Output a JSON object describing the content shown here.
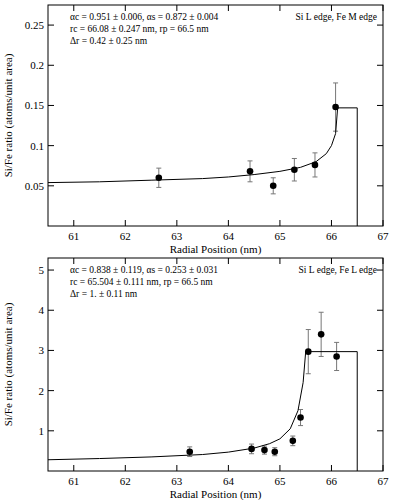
{
  "chart_data": [
    {
      "type": "scatter",
      "x_label": "Radial Position (nm)",
      "y_label": "Si/Fe ratio (atoms/unit area)",
      "annotations": [
        "αc = 0.951 ± 0.006, αs = 0.872 ± 0.004",
        "rc = 66.08 ± 0.247 nm, rp = 66.5 nm",
        "Δr = 0.42 ± 0.25 nm"
      ],
      "edge_label": "Si L edge, Fe M edge",
      "xlim": [
        60.5,
        67
      ],
      "xticks": [
        61,
        62,
        63,
        64,
        65,
        66,
        67
      ],
      "ylim": [
        0,
        0.275
      ],
      "yticks": [
        0.05,
        0.1,
        0.15,
        0.2,
        0.25
      ],
      "series": [
        {
          "type": "scatter",
          "marker": "circle",
          "color": "#000000",
          "x": [
            62.65,
            64.42,
            64.87,
            65.28,
            65.68,
            66.08
          ],
          "values": [
            0.06,
            0.068,
            0.05,
            0.07,
            0.076,
            0.148
          ],
          "errors": [
            0.012,
            0.013,
            0.01,
            0.014,
            0.015,
            0.03
          ]
        },
        {
          "type": "line",
          "line_style": "solid",
          "color": "#000000",
          "x": [
            60.5,
            61.5,
            62.5,
            63.5,
            64.0,
            64.5,
            65.0,
            65.4,
            65.7,
            65.9,
            66.0,
            66.08,
            66.12,
            66.5,
            66.5
          ],
          "values": [
            0.054,
            0.055,
            0.057,
            0.059,
            0.061,
            0.064,
            0.068,
            0.073,
            0.08,
            0.09,
            0.1,
            0.115,
            0.147,
            0.147,
            0
          ]
        }
      ]
    },
    {
      "type": "scatter",
      "x_label": "Radial Position (nm)",
      "y_label": "Si/Fe ratio (atoms/unit area)",
      "annotations": [
        "αc = 0.838 ± 0.119, αs = 0.253 ± 0.031",
        "rc = 65.504 ± 0.111 nm, rp = 66.5 nm",
        "Δr = 1. ± 0.11 nm"
      ],
      "edge_label": "Si L edge, Fe L edge",
      "xlim": [
        60.5,
        67
      ],
      "xticks": [
        61,
        62,
        63,
        64,
        65,
        66,
        67
      ],
      "ylim": [
        0,
        5.3
      ],
      "yticks": [
        1,
        2,
        3,
        4,
        5
      ],
      "series": [
        {
          "type": "scatter",
          "marker": "circle",
          "color": "#000000",
          "x": [
            63.25,
            64.45,
            64.7,
            64.9,
            65.25,
            65.4,
            65.55,
            65.8,
            66.1
          ],
          "values": [
            0.48,
            0.55,
            0.52,
            0.48,
            0.75,
            1.33,
            2.97,
            3.4,
            2.85
          ],
          "errors": [
            0.12,
            0.12,
            0.1,
            0.1,
            0.12,
            0.2,
            0.55,
            0.55,
            0.35
          ]
        },
        {
          "type": "line",
          "line_style": "solid",
          "color": "#000000",
          "x": [
            60.5,
            61.5,
            62.5,
            63.5,
            64.0,
            64.5,
            64.8,
            65.0,
            65.2,
            65.35,
            65.45,
            65.5,
            66.5,
            66.5
          ],
          "values": [
            0.28,
            0.31,
            0.35,
            0.41,
            0.47,
            0.57,
            0.68,
            0.8,
            1.05,
            1.5,
            2.2,
            2.97,
            2.97,
            0
          ]
        }
      ]
    }
  ]
}
